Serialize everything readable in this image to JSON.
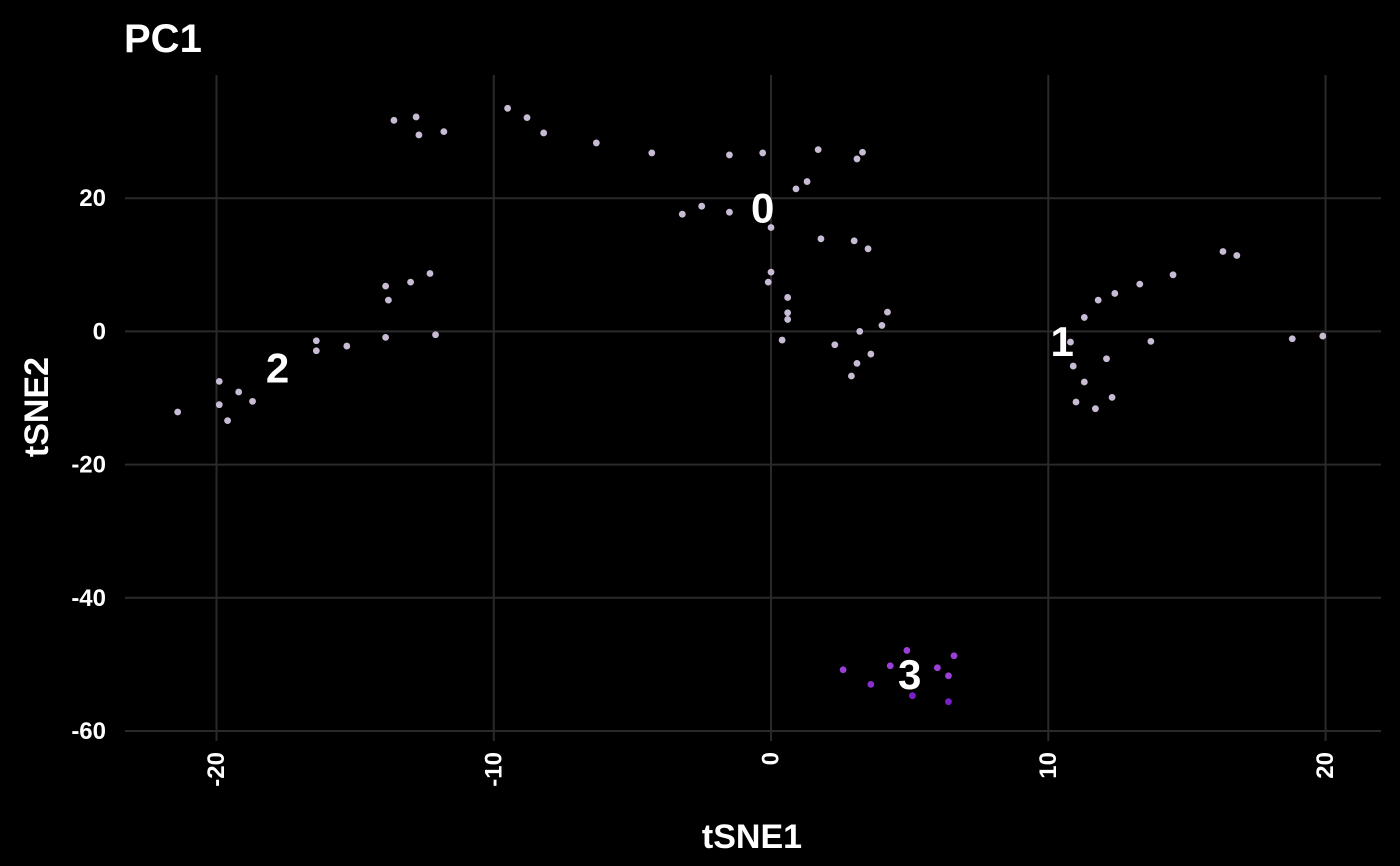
{
  "chart_data": {
    "type": "scatter",
    "title": "PC1",
    "xlabel": "tSNE1",
    "ylabel": "tSNE2",
    "xlim": [
      -23.3,
      22
    ],
    "ylim": [
      -61.5,
      38.5
    ],
    "x_ticks": [
      -20,
      -10,
      0,
      10,
      20
    ],
    "x_tick_labels": [
      "-20",
      "-10",
      "0",
      "10",
      "20"
    ],
    "y_ticks": [
      -60,
      -40,
      -20,
      0,
      20
    ],
    "y_tick_labels": [
      "-60",
      "-40",
      "-20",
      "0",
      "20"
    ],
    "grid": true,
    "background": "#000000",
    "grid_color": "#2a2a2a",
    "cluster_labels": [
      {
        "text": "0",
        "x": -0.3,
        "y": 18.5
      },
      {
        "text": "1",
        "x": 10.5,
        "y": -1.5
      },
      {
        "text": "2",
        "x": -17.8,
        "y": -5.5
      },
      {
        "text": "3",
        "x": 5.0,
        "y": -51.5
      }
    ],
    "points": [
      {
        "x": -13.6,
        "y": 31.7,
        "color": "#c7bcd4"
      },
      {
        "x": -12.8,
        "y": 32.2,
        "color": "#c7bcd4"
      },
      {
        "x": -12.7,
        "y": 29.5,
        "color": "#c7bcd4"
      },
      {
        "x": -11.8,
        "y": 30.0,
        "color": "#c7bcd4"
      },
      {
        "x": -9.5,
        "y": 33.5,
        "color": "#c7bcd4"
      },
      {
        "x": -8.8,
        "y": 32.1,
        "color": "#c7bcd4"
      },
      {
        "x": -8.2,
        "y": 29.8,
        "color": "#c7bcd4"
      },
      {
        "x": -6.3,
        "y": 28.3,
        "color": "#c7bcd4"
      },
      {
        "x": -4.3,
        "y": 26.8,
        "color": "#c7bcd4"
      },
      {
        "x": -1.5,
        "y": 26.5,
        "color": "#c7bcd4"
      },
      {
        "x": -0.3,
        "y": 26.8,
        "color": "#c7bcd4"
      },
      {
        "x": 1.7,
        "y": 27.3,
        "color": "#c7bcd4"
      },
      {
        "x": 3.3,
        "y": 26.9,
        "color": "#c7bcd4"
      },
      {
        "x": 3.1,
        "y": 25.9,
        "color": "#c7bcd4"
      },
      {
        "x": 1.3,
        "y": 22.5,
        "color": "#c7bcd4"
      },
      {
        "x": 0.9,
        "y": 21.4,
        "color": "#c7bcd4"
      },
      {
        "x": -2.5,
        "y": 18.8,
        "color": "#c7bcd4"
      },
      {
        "x": -3.2,
        "y": 17.6,
        "color": "#c7bcd4"
      },
      {
        "x": -1.5,
        "y": 17.9,
        "color": "#c7bcd4"
      },
      {
        "x": 0.0,
        "y": 15.6,
        "color": "#c7bcd4"
      },
      {
        "x": 1.8,
        "y": 13.9,
        "color": "#c7bcd4"
      },
      {
        "x": 3.0,
        "y": 13.6,
        "color": "#c7bcd4"
      },
      {
        "x": 3.5,
        "y": 12.4,
        "color": "#c7bcd4"
      },
      {
        "x": 0.0,
        "y": 8.9,
        "color": "#c7bcd4"
      },
      {
        "x": -0.1,
        "y": 7.4,
        "color": "#c7bcd4"
      },
      {
        "x": 0.6,
        "y": 5.1,
        "color": "#c7bcd4"
      },
      {
        "x": 0.6,
        "y": 2.8,
        "color": "#c7bcd4"
      },
      {
        "x": 0.6,
        "y": 1.8,
        "color": "#c7bcd4"
      },
      {
        "x": 4.2,
        "y": 2.9,
        "color": "#c7bcd4"
      },
      {
        "x": 4.0,
        "y": 0.9,
        "color": "#c7bcd4"
      },
      {
        "x": 3.2,
        "y": 0.0,
        "color": "#c7bcd4"
      },
      {
        "x": 0.4,
        "y": -1.3,
        "color": "#c7bcd4"
      },
      {
        "x": 2.3,
        "y": -2.0,
        "color": "#c7bcd4"
      },
      {
        "x": 3.6,
        "y": -3.4,
        "color": "#c7bcd4"
      },
      {
        "x": 3.1,
        "y": -4.8,
        "color": "#c7bcd4"
      },
      {
        "x": 2.9,
        "y": -6.7,
        "color": "#c7bcd4"
      },
      {
        "x": -12.3,
        "y": 8.7,
        "color": "#c7bcd4"
      },
      {
        "x": -13.0,
        "y": 7.4,
        "color": "#c7bcd4"
      },
      {
        "x": -13.9,
        "y": 6.8,
        "color": "#c7bcd4"
      },
      {
        "x": -13.8,
        "y": 4.7,
        "color": "#c7bcd4"
      },
      {
        "x": -13.9,
        "y": -0.9,
        "color": "#c7bcd4"
      },
      {
        "x": -12.1,
        "y": -0.5,
        "color": "#c7bcd4"
      },
      {
        "x": -16.4,
        "y": -1.4,
        "color": "#c7bcd4"
      },
      {
        "x": -15.3,
        "y": -2.2,
        "color": "#c7bcd4"
      },
      {
        "x": -16.4,
        "y": -2.9,
        "color": "#c7bcd4"
      },
      {
        "x": -19.9,
        "y": -7.5,
        "color": "#c7bcd4"
      },
      {
        "x": -19.2,
        "y": -9.1,
        "color": "#c7bcd4"
      },
      {
        "x": -19.9,
        "y": -11.0,
        "color": "#c7bcd4"
      },
      {
        "x": -18.7,
        "y": -10.5,
        "color": "#c7bcd4"
      },
      {
        "x": -21.4,
        "y": -12.1,
        "color": "#c7bcd4"
      },
      {
        "x": -19.6,
        "y": -13.4,
        "color": "#c7bcd4"
      },
      {
        "x": 16.3,
        "y": 12.0,
        "color": "#c7bcd4"
      },
      {
        "x": 16.8,
        "y": 11.4,
        "color": "#c7bcd4"
      },
      {
        "x": 14.5,
        "y": 8.5,
        "color": "#c7bcd4"
      },
      {
        "x": 13.3,
        "y": 7.1,
        "color": "#c7bcd4"
      },
      {
        "x": 12.4,
        "y": 5.7,
        "color": "#c7bcd4"
      },
      {
        "x": 11.8,
        "y": 4.7,
        "color": "#c7bcd4"
      },
      {
        "x": 11.3,
        "y": 2.1,
        "color": "#c7bcd4"
      },
      {
        "x": 10.8,
        "y": -1.6,
        "color": "#c7bcd4"
      },
      {
        "x": 13.7,
        "y": -1.5,
        "color": "#c7bcd4"
      },
      {
        "x": 18.8,
        "y": -1.1,
        "color": "#c7bcd4"
      },
      {
        "x": 19.9,
        "y": -0.7,
        "color": "#c7bcd4"
      },
      {
        "x": 12.1,
        "y": -4.1,
        "color": "#c7bcd4"
      },
      {
        "x": 10.9,
        "y": -5.2,
        "color": "#c7bcd4"
      },
      {
        "x": 11.3,
        "y": -7.6,
        "color": "#c7bcd4"
      },
      {
        "x": 12.3,
        "y": -9.9,
        "color": "#c7bcd4"
      },
      {
        "x": 11.0,
        "y": -10.6,
        "color": "#c7bcd4"
      },
      {
        "x": 11.7,
        "y": -11.6,
        "color": "#c7bcd4"
      },
      {
        "x": 4.9,
        "y": -47.9,
        "color": "#9b3fd6"
      },
      {
        "x": 6.6,
        "y": -48.7,
        "color": "#9b3fd6"
      },
      {
        "x": 4.3,
        "y": -50.2,
        "color": "#9b3fd6"
      },
      {
        "x": 6.0,
        "y": -50.5,
        "color": "#9b3fd6"
      },
      {
        "x": 2.6,
        "y": -50.8,
        "color": "#9b3fd6"
      },
      {
        "x": 6.4,
        "y": -51.7,
        "color": "#9b3fd6"
      },
      {
        "x": 3.6,
        "y": -53.0,
        "color": "#8b2fcf"
      },
      {
        "x": 5.1,
        "y": -54.7,
        "color": "#7a1fc8"
      },
      {
        "x": 6.4,
        "y": -55.6,
        "color": "#7a1fc8"
      }
    ]
  }
}
